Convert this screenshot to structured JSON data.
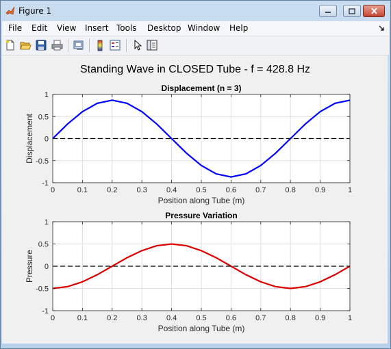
{
  "window": {
    "title": "Figure 1"
  },
  "menu": {
    "items": [
      "File",
      "Edit",
      "View",
      "Insert",
      "Tools",
      "Desktop",
      "Window",
      "Help"
    ]
  },
  "toolbar": {
    "icons": [
      "new-figure-icon",
      "open-file-icon",
      "save-icon",
      "print-icon",
      "print-preview-icon",
      "colorbar-icon",
      "legend-icon",
      "pointer-icon",
      "property-editor-icon"
    ]
  },
  "figure": {
    "suptitle": "Standing Wave in CLOSED Tube - f = 428.8 Hz"
  },
  "chart_data": [
    {
      "type": "line",
      "title": "Displacement (n = 3)",
      "xlabel": "Position along Tube (m)",
      "ylabel": "Displacement",
      "xlim": [
        0,
        1
      ],
      "ylim": [
        -1,
        1
      ],
      "xticks": [
        "0",
        "0.1",
        "0.2",
        "0.3",
        "0.4",
        "0.5",
        "0.6",
        "0.7",
        "0.8",
        "0.9",
        "1"
      ],
      "yticks": [
        "-1",
        "-0.5",
        "0",
        "0.5",
        "1"
      ],
      "grid": true,
      "series": [
        {
          "color": "#0000ff",
          "style": "solid",
          "x": [
            0,
            0.05,
            0.1,
            0.15,
            0.2,
            0.25,
            0.3,
            0.35,
            0.4,
            0.45,
            0.5,
            0.55,
            0.6,
            0.65,
            0.7,
            0.75,
            0.8,
            0.85,
            0.9,
            0.95,
            1.0
          ],
          "y": [
            0,
            0.33,
            0.61,
            0.8,
            0.87,
            0.8,
            0.61,
            0.33,
            0,
            -0.33,
            -0.61,
            -0.8,
            -0.87,
            -0.8,
            -0.61,
            -0.33,
            0,
            0.33,
            0.61,
            0.8,
            0.87
          ]
        },
        {
          "color": "#000000",
          "style": "dashed",
          "x": [
            0,
            1
          ],
          "y": [
            0,
            0
          ]
        }
      ]
    },
    {
      "type": "line",
      "title": "Pressure Variation",
      "xlabel": "Position along Tube (m)",
      "ylabel": "Pressure",
      "xlim": [
        0,
        1
      ],
      "ylim": [
        -1,
        1
      ],
      "xticks": [
        "0",
        "0.1",
        "0.2",
        "0.3",
        "0.4",
        "0.5",
        "0.6",
        "0.7",
        "0.8",
        "0.9",
        "1"
      ],
      "yticks": [
        "-1",
        "-0.5",
        "0",
        "0.5",
        "1"
      ],
      "grid": true,
      "series": [
        {
          "color": "#dd0000",
          "style": "solid",
          "x": [
            0,
            0.05,
            0.1,
            0.15,
            0.2,
            0.25,
            0.3,
            0.35,
            0.4,
            0.45,
            0.5,
            0.55,
            0.6,
            0.65,
            0.7,
            0.75,
            0.8,
            0.85,
            0.9,
            0.95,
            1.0
          ],
          "y": [
            -0.5,
            -0.46,
            -0.35,
            -0.19,
            0,
            0.19,
            0.35,
            0.46,
            0.5,
            0.46,
            0.35,
            0.19,
            0,
            -0.19,
            -0.35,
            -0.46,
            -0.5,
            -0.46,
            -0.35,
            -0.19,
            0
          ]
        },
        {
          "color": "#000000",
          "style": "dashed",
          "x": [
            0,
            1
          ],
          "y": [
            0,
            0
          ]
        }
      ]
    }
  ]
}
